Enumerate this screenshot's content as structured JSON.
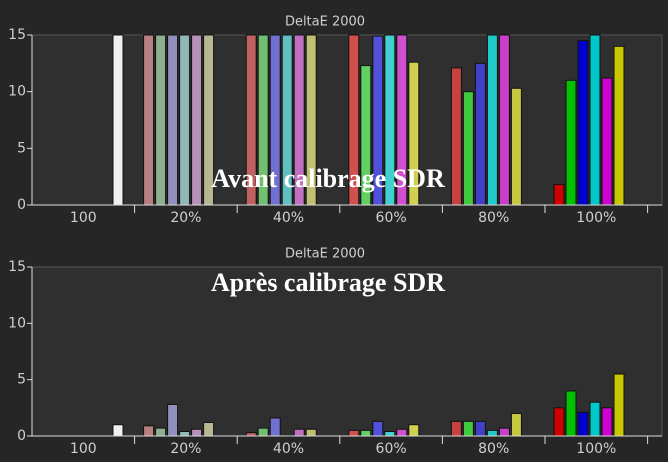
{
  "chart_data": [
    {
      "type": "bar",
      "title": "DeltaE 2000",
      "annotation": "Avant calibrage SDR",
      "categories": [
        "100",
        "20%",
        "40%",
        "60%",
        "80%",
        "100%"
      ],
      "ylim": [
        0,
        15
      ],
      "yticks": [
        0,
        5,
        10,
        15
      ],
      "series": [
        {
          "colors": [
            null,
            "#b88080",
            "#c06060",
            "#d05050",
            "#c84040",
            "#d00000"
          ],
          "values": [
            null,
            15,
            15,
            15,
            12.1,
            1.8
          ]
        },
        {
          "colors": [
            null,
            "#8fb08f",
            "#70c070",
            "#60d060",
            "#40c840",
            "#00c000"
          ],
          "values": [
            null,
            15,
            15,
            12.3,
            10,
            11
          ]
        },
        {
          "colors": [
            null,
            "#9090c0",
            "#7070d0",
            "#5050d8",
            "#4040c8",
            "#0000d0"
          ],
          "values": [
            null,
            15,
            15,
            14.9,
            12.5,
            14.5
          ]
        },
        {
          "colors": [
            null,
            "#90b8b8",
            "#60c0c0",
            "#40d0d0",
            "#20c8c8",
            "#00c8c8"
          ],
          "values": [
            null,
            15,
            15,
            15,
            15,
            15
          ]
        },
        {
          "colors": [
            null,
            "#b890b8",
            "#c070c0",
            "#d050d0",
            "#c840c8",
            "#d000d0"
          ],
          "values": [
            null,
            15,
            15,
            15,
            15,
            11.2
          ]
        },
        {
          "colors": [
            null,
            "#b8b890",
            "#c0c070",
            "#d0d050",
            "#c8c840",
            "#c8c800"
          ],
          "values": [
            null,
            15,
            15,
            12.6,
            10.3,
            14
          ]
        },
        {
          "colors": [
            "#f0f0f0",
            null,
            null,
            null,
            null,
            null
          ],
          "values": [
            15,
            null,
            null,
            null,
            null,
            null
          ]
        }
      ]
    },
    {
      "type": "bar",
      "title": "DeltaE 2000",
      "annotation": "Après calibrage SDR",
      "categories": [
        "100",
        "20%",
        "40%",
        "60%",
        "80%",
        "100%"
      ],
      "ylim": [
        0,
        15
      ],
      "yticks": [
        0,
        5,
        10,
        15
      ],
      "series": [
        {
          "colors": [
            null,
            "#b88080",
            "#c06060",
            "#d05050",
            "#c84040",
            "#d00000"
          ],
          "values": [
            null,
            0.9,
            0.3,
            0.5,
            1.3,
            2.5
          ]
        },
        {
          "colors": [
            null,
            "#8fb08f",
            "#70c070",
            "#60d060",
            "#40c840",
            "#00c000"
          ],
          "values": [
            null,
            0.7,
            0.7,
            0.5,
            1.3,
            4
          ]
        },
        {
          "colors": [
            null,
            "#9090c0",
            "#7070d0",
            "#5050d8",
            "#4040c8",
            "#0000d0"
          ],
          "values": [
            null,
            2.8,
            1.6,
            1.3,
            1.3,
            2.1
          ]
        },
        {
          "colors": [
            null,
            "#90b8b8",
            "#60c0c0",
            "#40d0d0",
            "#20c8c8",
            "#00c8c8"
          ],
          "values": [
            null,
            0.4,
            0,
            0.4,
            0.5,
            3
          ]
        },
        {
          "colors": [
            null,
            "#b890b8",
            "#c070c0",
            "#d050d0",
            "#c840c8",
            "#d000d0"
          ],
          "values": [
            null,
            0.6,
            0.6,
            0.6,
            0.7,
            2.5
          ]
        },
        {
          "colors": [
            null,
            "#b8b890",
            "#c0c070",
            "#d0d050",
            "#c8c840",
            "#c8c800"
          ],
          "values": [
            null,
            1.2,
            0.6,
            1,
            2,
            5.5
          ]
        },
        {
          "colors": [
            "#f0f0f0",
            null,
            null,
            null,
            null,
            null
          ],
          "values": [
            1,
            null,
            null,
            null,
            null,
            null
          ]
        }
      ]
    }
  ]
}
